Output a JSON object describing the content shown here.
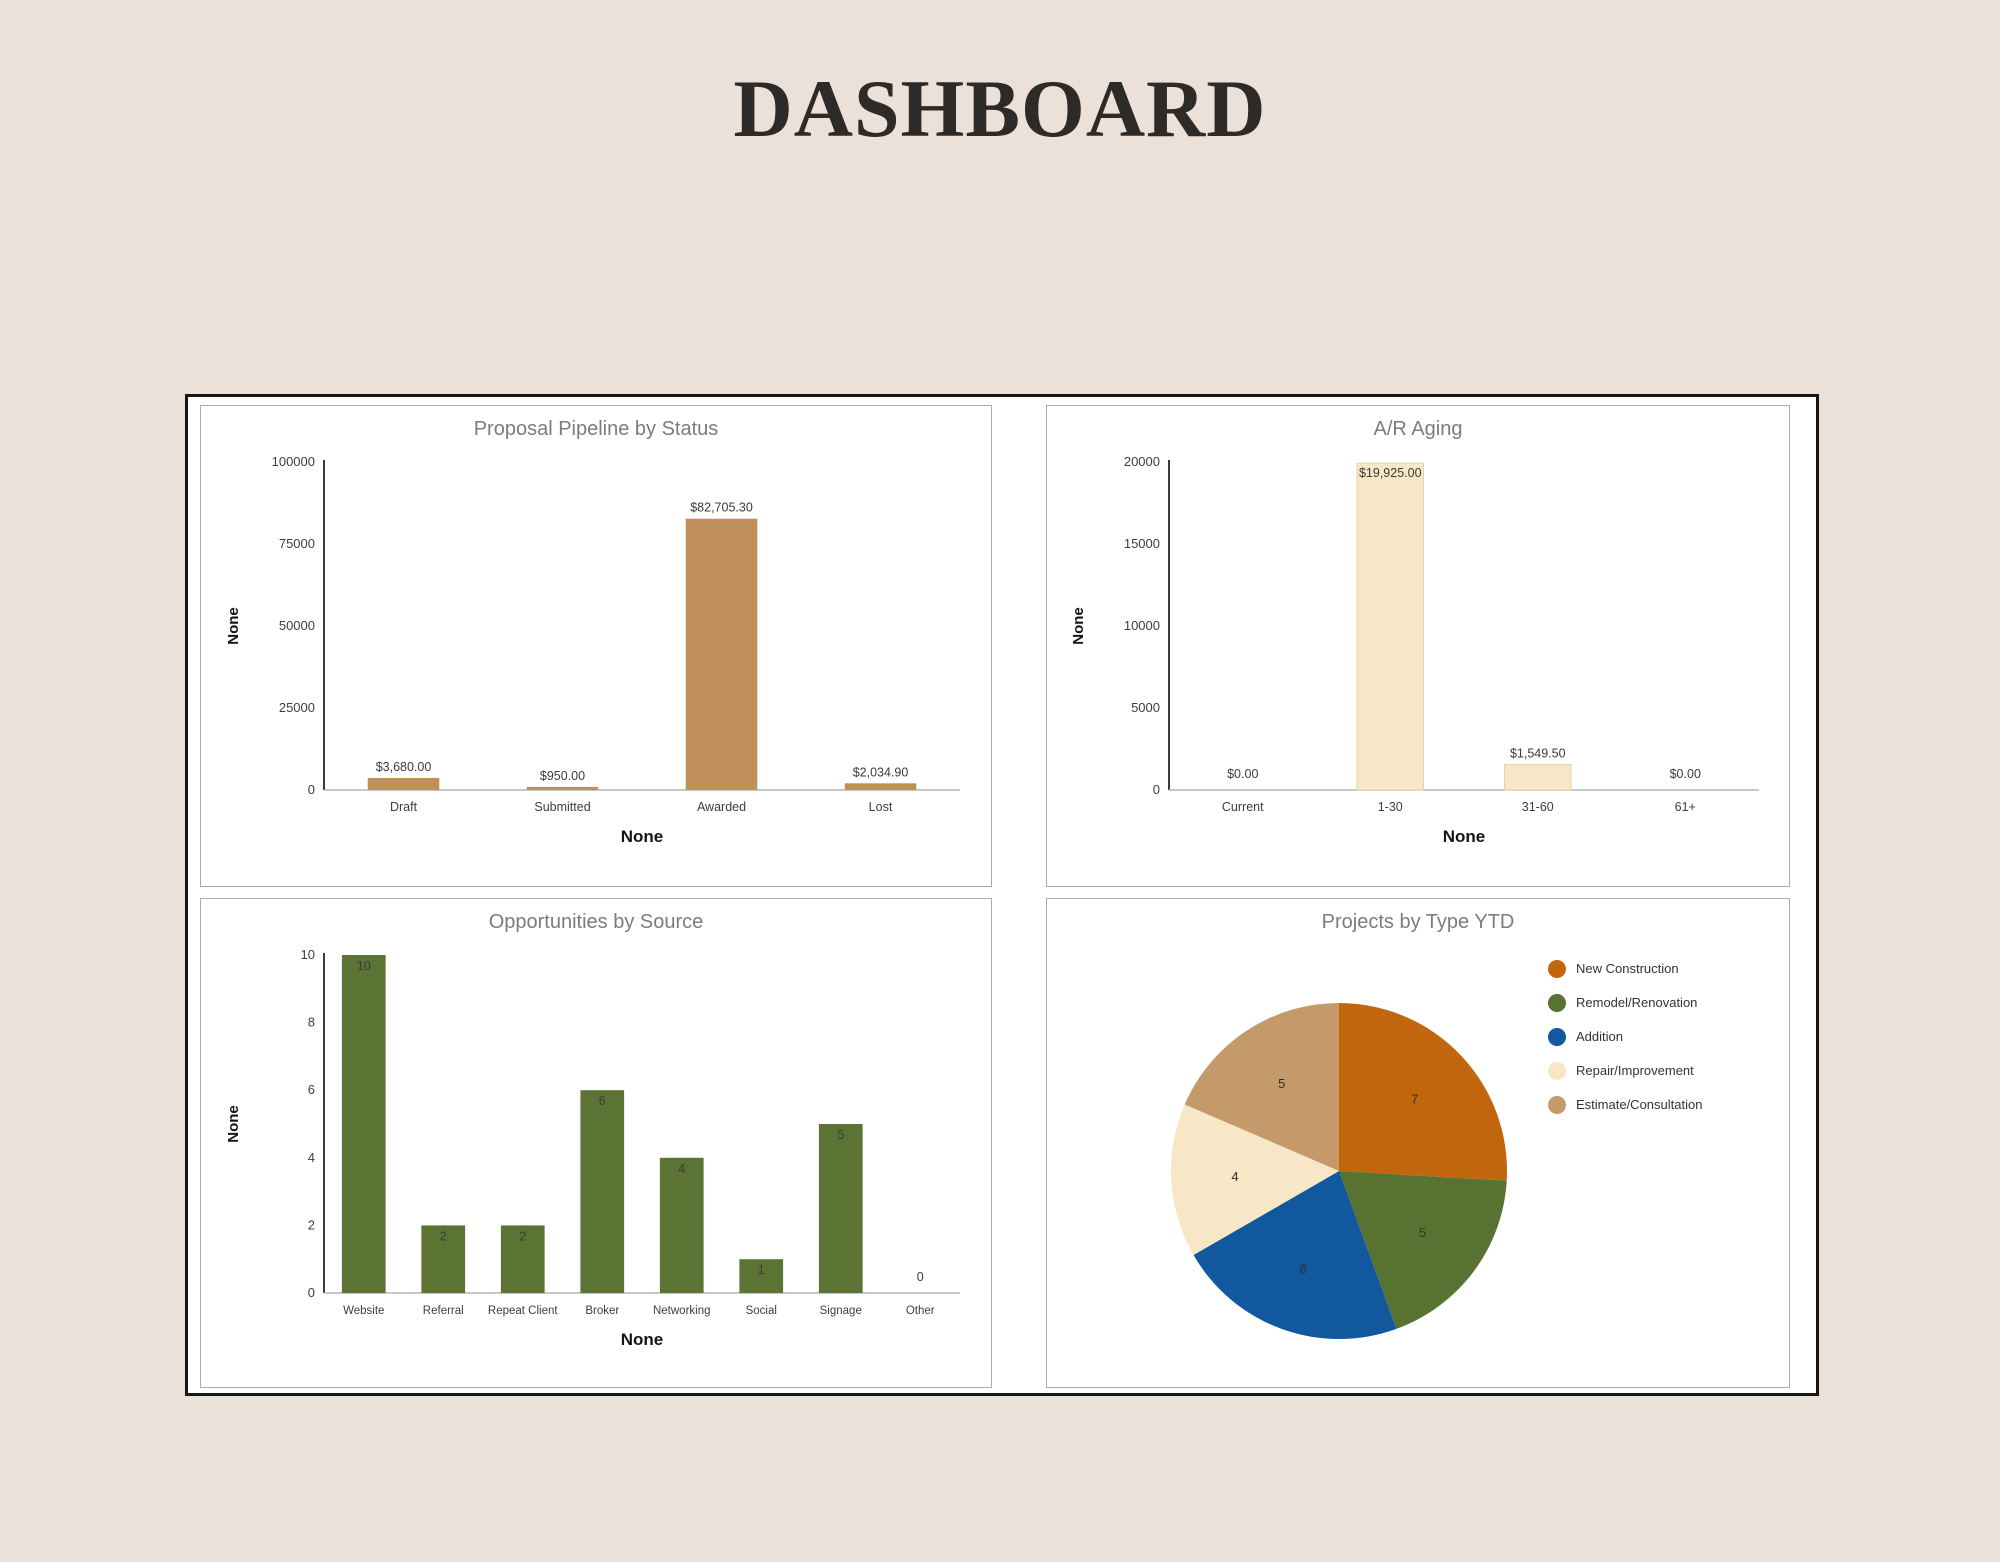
{
  "page": {
    "title": "DASHBOARD"
  },
  "colors": {
    "background": "#ece1d9",
    "panel_border": "#aeaca9",
    "outer_border": "#161616",
    "axis_line": "#3a3a3a",
    "baseline": "#b5b5b5",
    "chart_title": "#7c7c7c",
    "tick_text": "#3d3d3d",
    "label_text": "#3b3b3b"
  },
  "chart_data": [
    {
      "type": "bar",
      "title": "Proposal Pipeline by Status",
      "categories": [
        "Draft",
        "Submitted",
        "Awarded",
        "Lost"
      ],
      "values": [
        3680.0,
        950.0,
        82705.3,
        2034.9
      ],
      "value_labels": [
        "$3,680.00",
        "$950.00",
        "$82,705.30",
        "$2,034.90"
      ],
      "xlabel": "None",
      "ylabel": "None",
      "ylim": [
        0,
        100000
      ],
      "yticks": [
        0,
        25000,
        50000,
        75000,
        100000
      ],
      "ytick_labels": [
        "0",
        "25000",
        "50000",
        "75000",
        "100000"
      ],
      "bar_color": "#c0905a",
      "bar_stroke": "none",
      "label_position": "above",
      "grid": false,
      "legend_position": "none"
    },
    {
      "type": "bar",
      "title": "A/R Aging",
      "categories": [
        "Current",
        "1-30",
        "31-60",
        "61+"
      ],
      "values": [
        0,
        19925.0,
        1549.5,
        0
      ],
      "value_labels": [
        "$0.00",
        "$19,925.00",
        "$1,549.50",
        "$0.00"
      ],
      "xlabel": "None",
      "ylabel": "None",
      "ylim": [
        0,
        20000
      ],
      "yticks": [
        0,
        5000,
        10000,
        15000,
        20000
      ],
      "ytick_labels": [
        "0",
        "5000",
        "10000",
        "15000",
        "20000"
      ],
      "bar_color": "#f7e7c6",
      "bar_stroke": "#e4d0a9",
      "label_position": "above",
      "grid": false,
      "legend_position": "none"
    },
    {
      "type": "bar",
      "title": "Opportunities by Source",
      "categories": [
        "Website",
        "Referral",
        "Repeat Client",
        "Broker",
        "Networking",
        "Social",
        "Signage",
        "Other"
      ],
      "values": [
        10,
        2,
        2,
        6,
        4,
        1,
        5,
        0
      ],
      "value_labels": [
        "10",
        "2",
        "2",
        "6",
        "4",
        "1",
        "5",
        "0"
      ],
      "xlabel": "None",
      "ylabel": "None",
      "ylim": [
        0,
        10
      ],
      "yticks": [
        0,
        2,
        4,
        6,
        8,
        10
      ],
      "ytick_labels": [
        "0",
        "2",
        "4",
        "6",
        "8",
        "10"
      ],
      "bar_color": "#5b7434",
      "bar_stroke": "none",
      "label_position": "inside",
      "grid": false,
      "legend_position": "none"
    },
    {
      "type": "pie",
      "title": "Projects by Type YTD",
      "categories": [
        "New Construction",
        "Remodel/Renovation",
        "Addition",
        "Repair/Improvement",
        "Estimate/Consultation"
      ],
      "values": [
        7,
        5,
        6,
        4,
        5
      ],
      "value_labels": [
        "7",
        "5",
        "6",
        "4",
        "5"
      ],
      "colors": [
        "#c2660d",
        "#587232",
        "#11589e",
        "#f7e7c6",
        "#c49a6b"
      ],
      "start_angle_deg": 0,
      "direction": "clockwise",
      "legend_position": "right"
    }
  ]
}
